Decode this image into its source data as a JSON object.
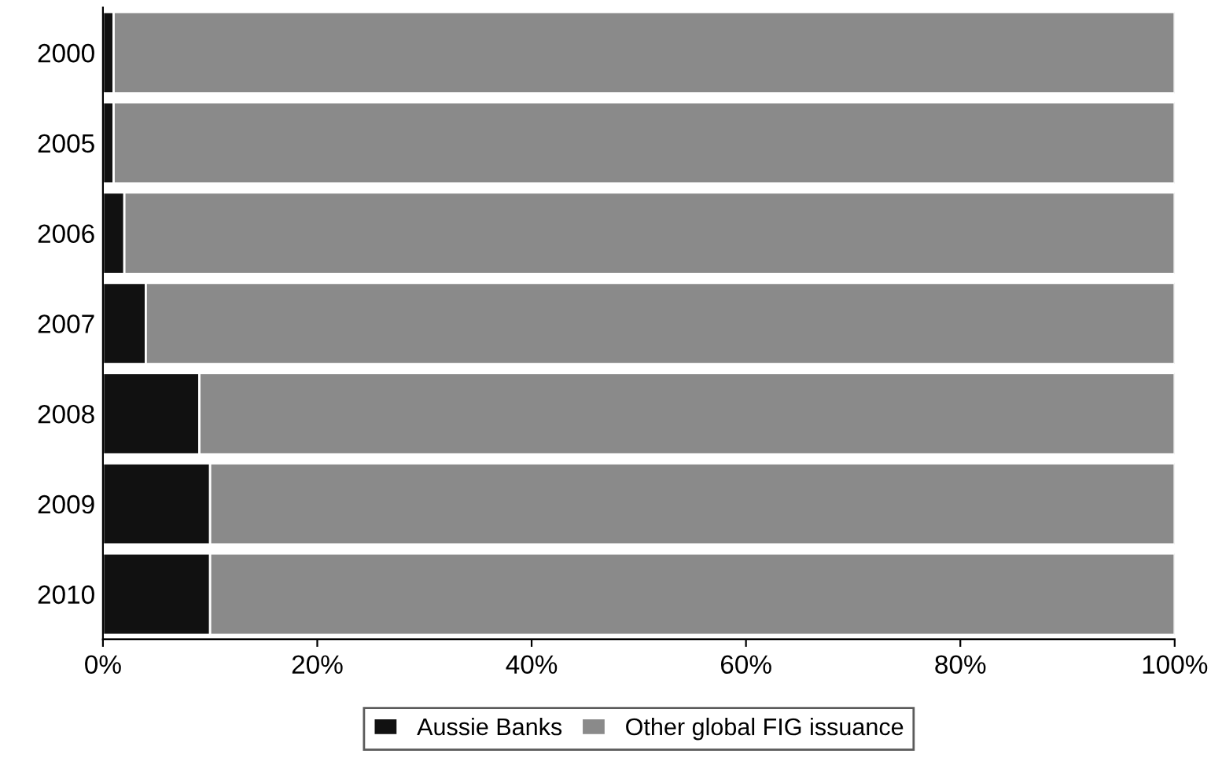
{
  "chart_data": {
    "type": "bar",
    "orientation": "horizontal",
    "stacked": true,
    "categories": [
      "2000",
      "2005",
      "2006",
      "2007",
      "2008",
      "2009",
      "2010"
    ],
    "series": [
      {
        "name": "Aussie Banks",
        "color": "#111111",
        "values": [
          1,
          1,
          2,
          4,
          9,
          10,
          10
        ]
      },
      {
        "name": "Other global FIG issuance",
        "color": "#8a8a8a",
        "values": [
          99,
          99,
          98,
          96,
          91,
          90,
          90
        ]
      }
    ],
    "xlim": [
      0,
      100
    ],
    "xticks": [
      {
        "value": 0,
        "label": "0%"
      },
      {
        "value": 20,
        "label": "20%"
      },
      {
        "value": 40,
        "label": "40%"
      },
      {
        "value": 60,
        "label": "60%"
      },
      {
        "value": 80,
        "label": "80%"
      },
      {
        "value": 100,
        "label": "100%"
      }
    ],
    "grid": false,
    "legend": "bottom"
  }
}
